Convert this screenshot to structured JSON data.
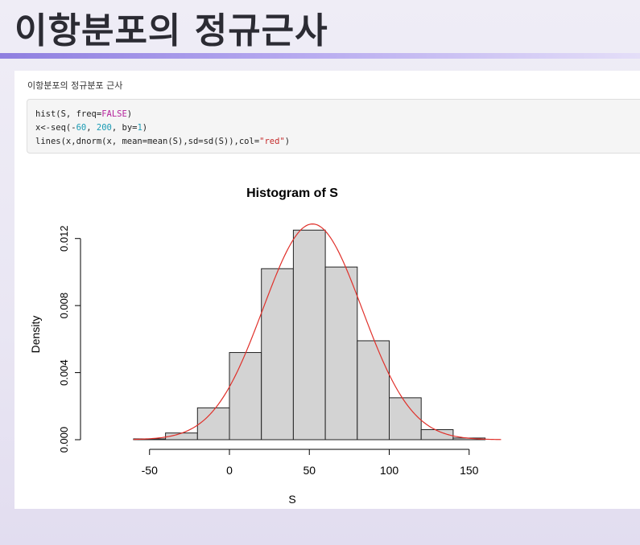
{
  "slide": {
    "title": "이항분포의 정규근사"
  },
  "panel": {
    "caption": "이항분포의 정규분포 근사",
    "code": {
      "line1": {
        "a": "hist(S, freq=",
        "const": "FALSE",
        "b": ")"
      },
      "line2": {
        "a": "x<-seq(-",
        "n1": "60",
        "b": ", ",
        "n2": "200",
        "c": ", by=",
        "n3": "1",
        "d": ")"
      },
      "line3": {
        "a": "lines(x,dnorm(x, mean=mean(S),sd=sd(S)),col=",
        "str": "\"red\"",
        "b": ")"
      }
    }
  },
  "colors": {
    "bar_fill": "#d3d3d3",
    "bar_stroke": "#222222",
    "curve": "#e0302a",
    "code_const": "#b4239b",
    "code_num": "#1a9bb4",
    "code_str": "#c52b2b"
  },
  "chart_data": {
    "type": "bar",
    "title": "Histogram of S",
    "xlabel": "S",
    "ylabel": "Density",
    "bin_edges": [
      -60,
      -40,
      -20,
      0,
      20,
      40,
      60,
      80,
      100,
      120,
      140,
      160
    ],
    "values": [
      5e-05,
      0.0004,
      0.0019,
      0.0052,
      0.0102,
      0.0125,
      0.0103,
      0.0059,
      0.0025,
      0.0006,
      0.0001
    ],
    "xlim": [
      -80,
      170
    ],
    "ylim": [
      0,
      0.0125
    ],
    "x_ticks": [
      "-50",
      "0",
      "50",
      "100",
      "150"
    ],
    "y_ticks": [
      "0.000",
      "0.004",
      "0.008",
      "0.012"
    ],
    "overlay_line": {
      "type": "normal_density",
      "x_range": [
        -60,
        170
      ],
      "mean": 52,
      "sd": 31,
      "color": "red"
    }
  }
}
